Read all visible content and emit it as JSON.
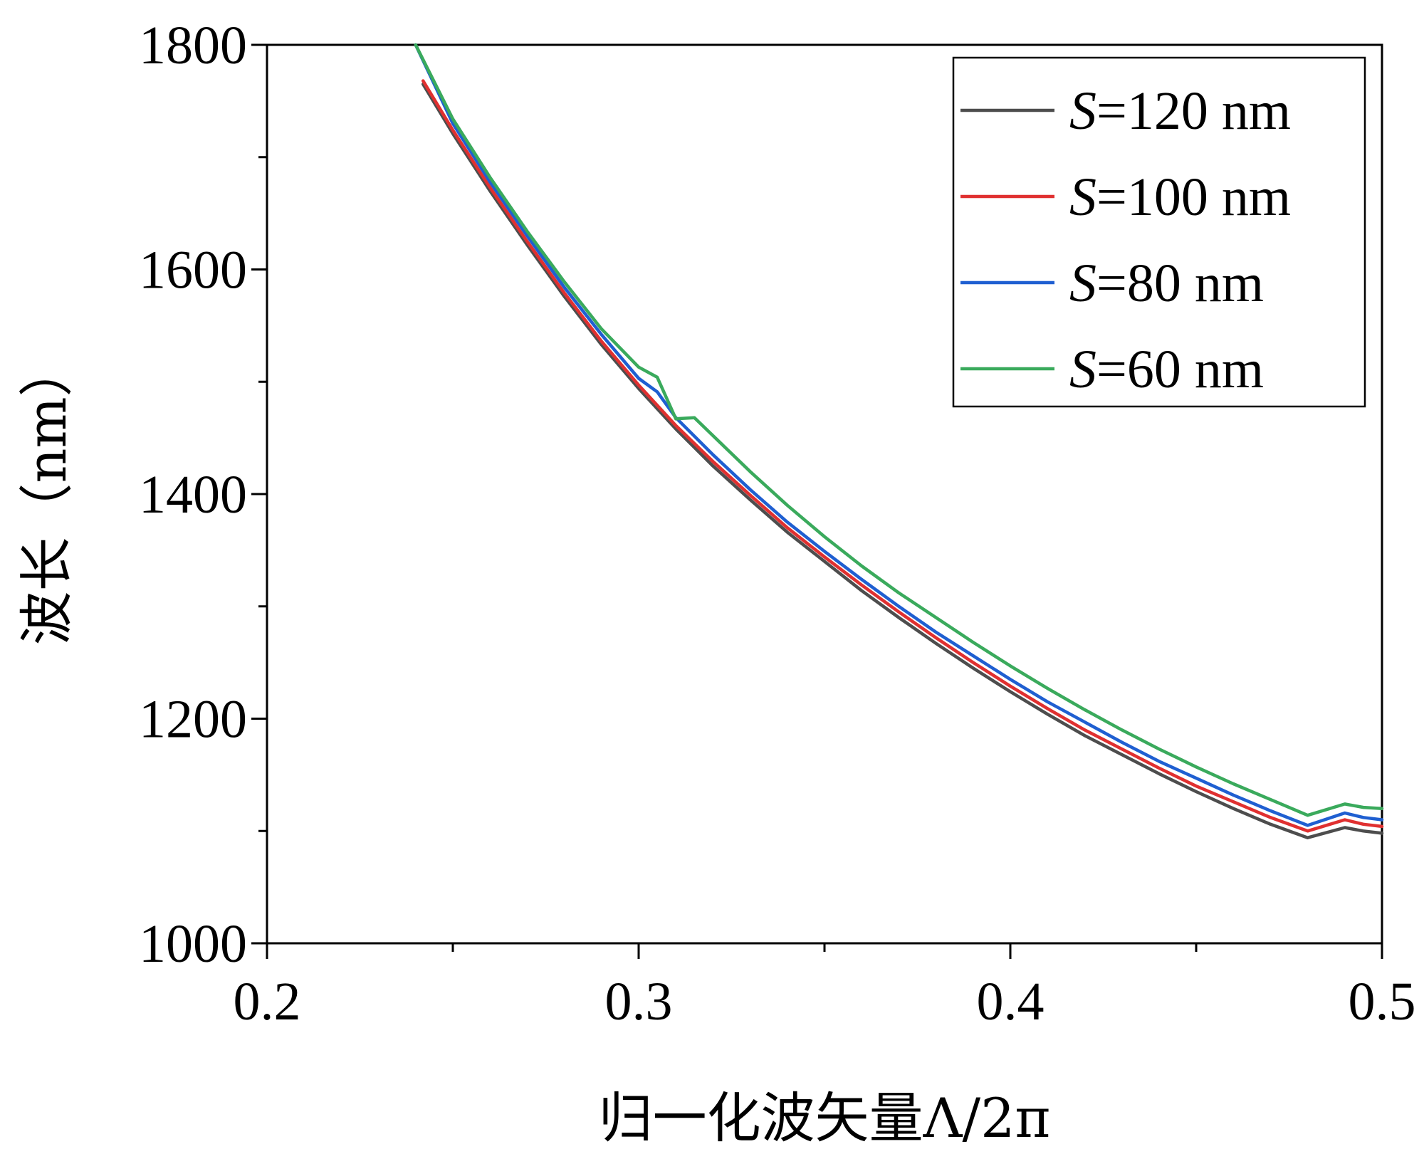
{
  "chart_data": {
    "type": "line",
    "title": "",
    "xlabel": "归一化波矢量Λ/2π",
    "ylabel": "波长（nm）",
    "xlim": [
      0.2,
      0.5
    ],
    "ylim": [
      1000,
      1800
    ],
    "xticks": [
      "0.2",
      "0.3",
      "0.4",
      "0.5"
    ],
    "yticks": [
      "1000",
      "1200",
      "1400",
      "1600",
      "1800"
    ],
    "grid": false,
    "legend_position": "top-right",
    "legend_prefix": "S",
    "series": [
      {
        "name": "=120 nm",
        "color": "#4d4d4d",
        "x": [
          0.242,
          0.25,
          0.26,
          0.27,
          0.28,
          0.29,
          0.3,
          0.31,
          0.32,
          0.33,
          0.34,
          0.35,
          0.36,
          0.37,
          0.38,
          0.39,
          0.4,
          0.41,
          0.42,
          0.43,
          0.44,
          0.45,
          0.46,
          0.47,
          0.48,
          0.49,
          0.495,
          0.5
        ],
        "y": [
          1765,
          1721,
          1670,
          1622,
          1576,
          1533,
          1494,
          1458,
          1425,
          1395,
          1366,
          1340,
          1314,
          1290,
          1267,
          1245,
          1224,
          1204,
          1185,
          1168,
          1151,
          1135,
          1120,
          1106,
          1094,
          1103,
          1100,
          1098
        ]
      },
      {
        "name": "=100 nm",
        "color": "#e03030",
        "x": [
          0.242,
          0.25,
          0.26,
          0.27,
          0.28,
          0.29,
          0.3,
          0.31,
          0.32,
          0.33,
          0.34,
          0.35,
          0.36,
          0.37,
          0.38,
          0.39,
          0.4,
          0.41,
          0.42,
          0.43,
          0.44,
          0.45,
          0.46,
          0.47,
          0.48,
          0.49,
          0.495,
          0.5
        ],
        "y": [
          1768,
          1724,
          1673,
          1625,
          1579,
          1536,
          1497,
          1461,
          1429,
          1399,
          1370,
          1344,
          1319,
          1295,
          1272,
          1250,
          1229,
          1209,
          1190,
          1173,
          1156,
          1140,
          1126,
          1112,
          1100,
          1110,
          1106,
          1104
        ]
      },
      {
        "name": "=80 nm",
        "color": "#1f5fd1",
        "x": [
          0.24,
          0.25,
          0.26,
          0.27,
          0.28,
          0.29,
          0.3,
          0.305,
          0.31,
          0.32,
          0.33,
          0.34,
          0.35,
          0.36,
          0.37,
          0.38,
          0.39,
          0.4,
          0.41,
          0.42,
          0.43,
          0.44,
          0.45,
          0.46,
          0.47,
          0.48,
          0.49,
          0.495,
          0.5
        ],
        "y": [
          1800,
          1730,
          1678,
          1630,
          1584,
          1542,
          1503,
          1491,
          1468,
          1435,
          1404,
          1375,
          1349,
          1324,
          1300,
          1277,
          1256,
          1235,
          1215,
          1197,
          1179,
          1162,
          1147,
          1132,
          1118,
          1105,
          1116,
          1112,
          1110
        ]
      },
      {
        "name": "=60 nm",
        "color": "#3aaa5c",
        "x": [
          0.24,
          0.25,
          0.26,
          0.27,
          0.28,
          0.29,
          0.3,
          0.305,
          0.31,
          0.315,
          0.32,
          0.33,
          0.34,
          0.35,
          0.36,
          0.37,
          0.38,
          0.39,
          0.4,
          0.41,
          0.42,
          0.43,
          0.44,
          0.45,
          0.46,
          0.47,
          0.48,
          0.49,
          0.495,
          0.5
        ],
        "y": [
          1800,
          1734,
          1682,
          1634,
          1589,
          1547,
          1513,
          1504,
          1467,
          1468,
          1452,
          1420,
          1390,
          1362,
          1336,
          1312,
          1290,
          1268,
          1247,
          1227,
          1208,
          1190,
          1173,
          1157,
          1142,
          1128,
          1114,
          1124,
          1121,
          1120
        ]
      }
    ]
  }
}
